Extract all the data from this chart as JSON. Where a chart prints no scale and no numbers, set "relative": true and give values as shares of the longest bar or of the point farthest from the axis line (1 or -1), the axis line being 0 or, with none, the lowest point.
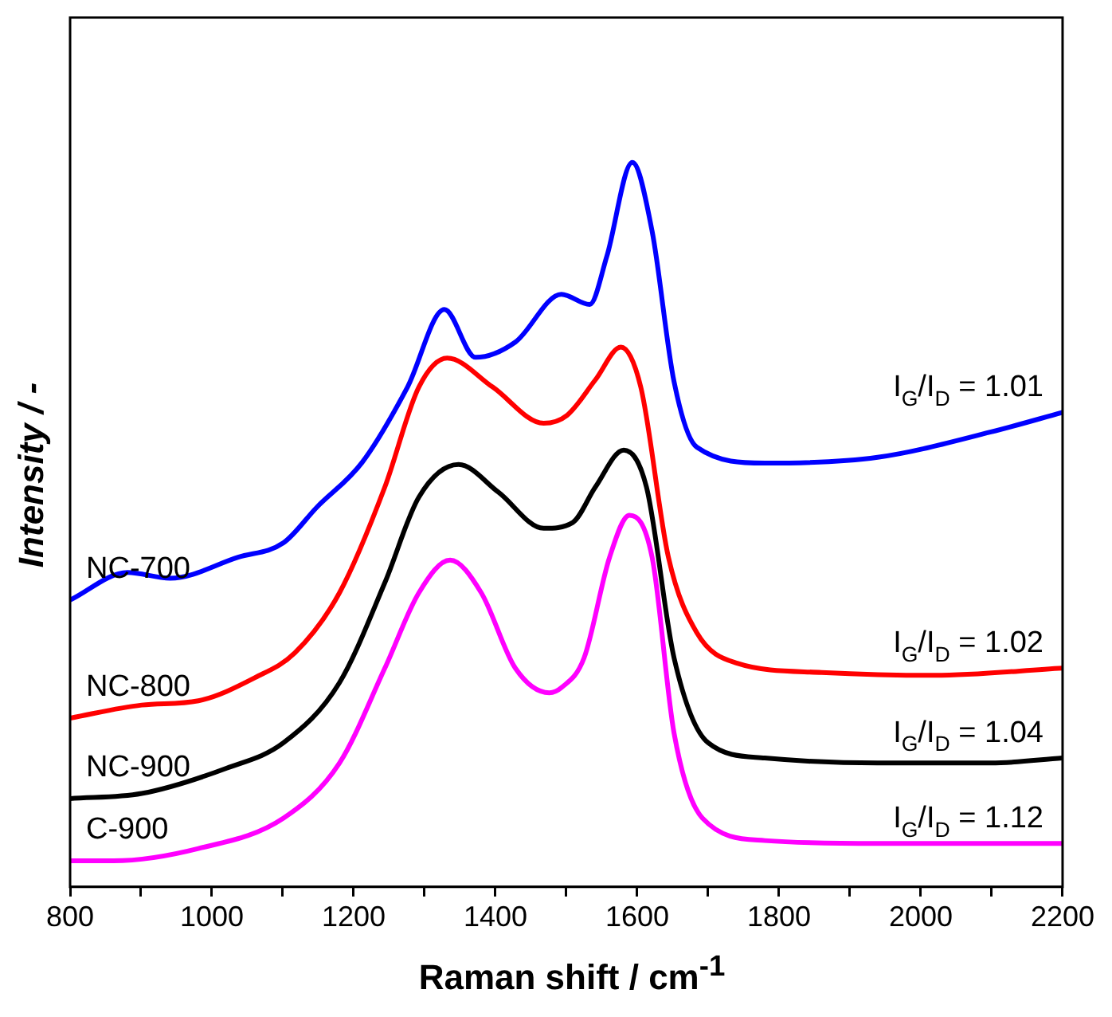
{
  "chart_data": {
    "type": "line",
    "relative": true,
    "xlabel": "Raman shift / cm$^{-1}$",
    "ylabel": "Intensity / -",
    "xlim": [
      800,
      2200
    ],
    "xticks": [
      800,
      {
        "value": 900,
        "label": null
      },
      1000,
      {
        "value": 1100,
        "label": null
      },
      1200,
      {
        "value": 1300,
        "label": null
      },
      1400,
      {
        "value": 1500,
        "label": null
      },
      1600,
      {
        "value": 1700,
        "label": null
      },
      1800,
      {
        "value": 1900,
        "label": null
      },
      2000,
      {
        "value": 2100,
        "label": null
      },
      2200
    ],
    "grid": false,
    "legend": false,
    "marker": "none",
    "line_style": "solid",
    "series": [
      {
        "name": "NC-700",
        "color": "#0000ff",
        "x": [
          800,
          881,
          941,
          1037,
          1101,
          1148,
          1212,
          1276,
          1328,
          1372,
          1428,
          1493,
          1533,
          1557,
          1593,
          1621,
          1652,
          1684,
          1780,
          1939,
          2099,
          2200
        ],
        "values": [
          0.396,
          0.434,
          0.426,
          0.455,
          0.475,
          0.524,
          0.586,
          0.69,
          0.797,
          0.731,
          0.752,
          0.818,
          0.804,
          0.87,
          1,
          0.905,
          0.697,
          0.607,
          0.585,
          0.593,
          0.628,
          0.655
        ]
      },
      {
        "name": "NC-800",
        "color": "#ff0000",
        "x": [
          800,
          901,
          981,
          1061,
          1117,
          1180,
          1244,
          1292,
          1332,
          1396,
          1468,
          1501,
          1541,
          1577,
          1605,
          1644,
          1684,
          1740,
          1860,
          2019,
          2200
        ],
        "values": [
          0.233,
          0.251,
          0.257,
          0.289,
          0.323,
          0.406,
          0.552,
          0.69,
          0.73,
          0.69,
          0.64,
          0.651,
          0.7,
          0.745,
          0.69,
          0.455,
          0.351,
          0.309,
          0.296,
          0.292,
          0.302
        ]
      },
      {
        "name": "NC-900",
        "color": "#000000",
        "x": [
          800,
          901,
          1021,
          1101,
          1180,
          1244,
          1292,
          1348,
          1404,
          1468,
          1509,
          1541,
          1581,
          1613,
          1652,
          1700,
          1780,
          1939,
          2099,
          2200
        ],
        "values": [
          0.122,
          0.129,
          0.164,
          0.199,
          0.282,
          0.42,
          0.538,
          0.583,
          0.545,
          0.495,
          0.503,
          0.552,
          0.603,
          0.552,
          0.316,
          0.199,
          0.178,
          0.171,
          0.171,
          0.178
        ]
      },
      {
        "name": "C-900",
        "color": "#ff00ff",
        "x": [
          800,
          861,
          981,
          1101,
          1180,
          1244,
          1292,
          1336,
          1380,
          1428,
          1476,
          1493,
          1525,
          1561,
          1589,
          1621,
          1652,
          1692,
          1780,
          1939,
          2200
        ],
        "values": [
          0.036,
          0.036,
          0.053,
          0.095,
          0.171,
          0.302,
          0.406,
          0.451,
          0.406,
          0.302,
          0.268,
          0.275,
          0.316,
          0.455,
          0.513,
          0.455,
          0.212,
          0.095,
          0.064,
          0.06,
          0.06
        ]
      }
    ],
    "annotations": [
      "I$_{G}$/I$_{D}$ = 1.01",
      "I$_{G}$/I$_{D}$ = 1.02",
      "I$_{G}$/I$_{D}$ = 1.04",
      "I$_{G}$/I$_{D}$ = 1.12"
    ]
  }
}
